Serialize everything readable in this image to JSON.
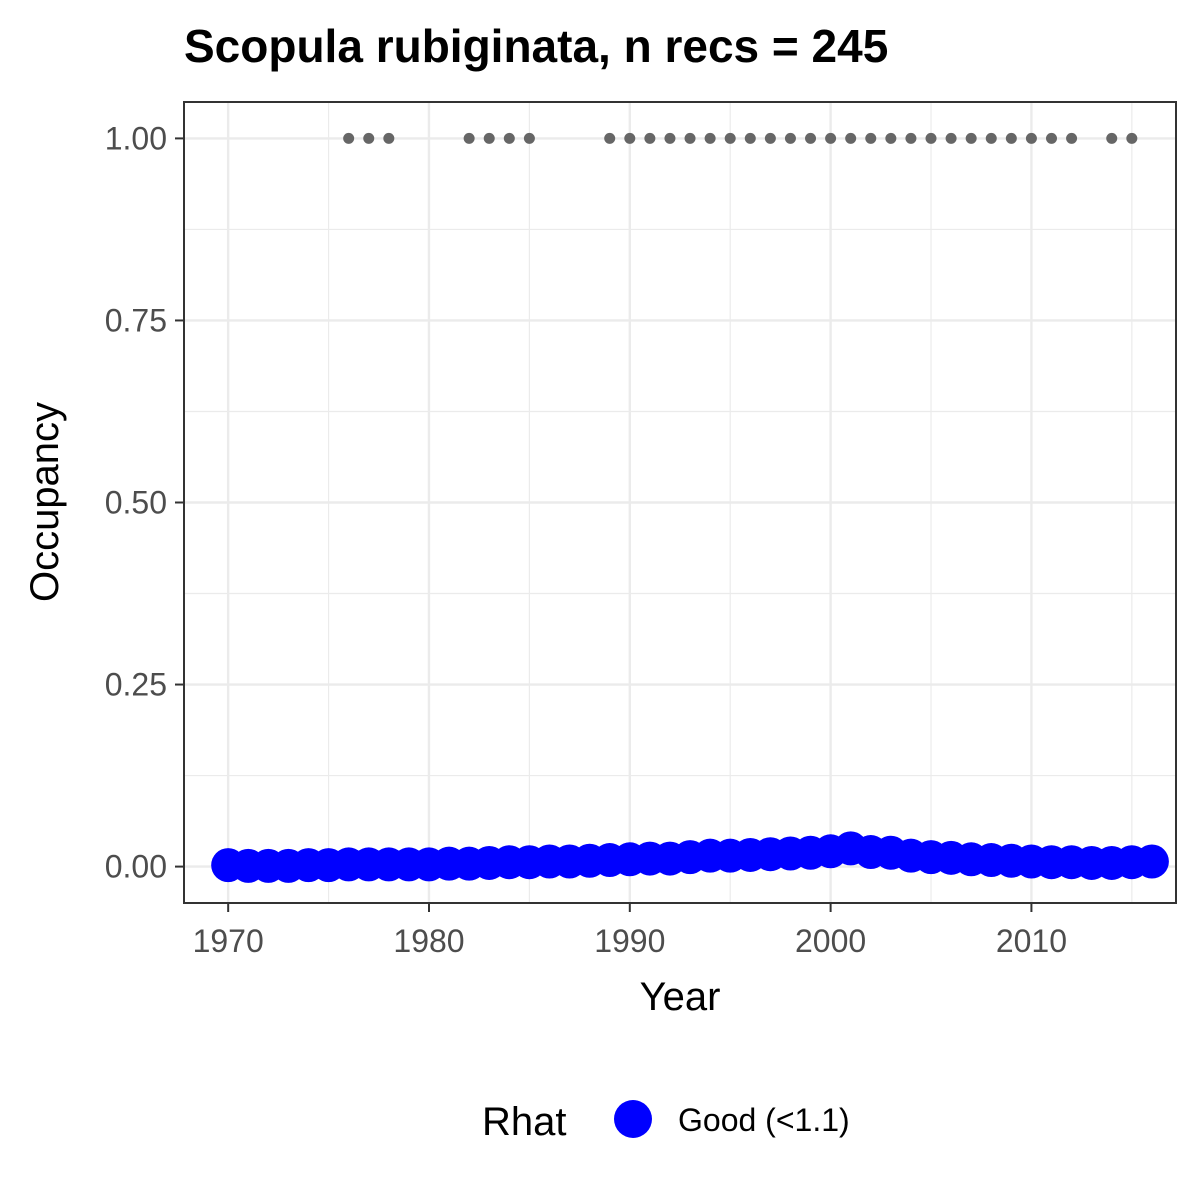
{
  "chart_data": {
    "type": "scatter",
    "title": "Scopula rubiginata, n recs = 245",
    "xlabel": "Year",
    "ylabel": "Occupancy",
    "xlim": [
      1967.8,
      2017.2
    ],
    "ylim": [
      -0.05,
      1.05
    ],
    "x_ticks": [
      1970,
      1980,
      1990,
      2000,
      2010
    ],
    "x_tick_labels": [
      "1970",
      "1980",
      "1990",
      "2000",
      "2010"
    ],
    "y_ticks": [
      0,
      0.25,
      0.5,
      0.75,
      1
    ],
    "y_tick_labels": [
      "0.00",
      "0.25",
      "0.50",
      "0.75",
      "1.00"
    ],
    "grid": true,
    "legend": {
      "title": "Rhat",
      "position": "bottom",
      "entries": [
        {
          "label": "Good (<1.1)",
          "color": "#0000ff"
        }
      ]
    },
    "series": [
      {
        "name": "Good (<1.1)",
        "color": "#0000ff",
        "points": [
          [
            1970,
            0.002
          ],
          [
            1971,
            0.001
          ],
          [
            1972,
            0.001
          ],
          [
            1973,
            0.001
          ],
          [
            1974,
            0.002
          ],
          [
            1975,
            0.002
          ],
          [
            1976,
            0.003
          ],
          [
            1977,
            0.003
          ],
          [
            1978,
            0.003
          ],
          [
            1979,
            0.003
          ],
          [
            1980,
            0.003
          ],
          [
            1981,
            0.004
          ],
          [
            1982,
            0.004
          ],
          [
            1983,
            0.005
          ],
          [
            1984,
            0.006
          ],
          [
            1985,
            0.006
          ],
          [
            1986,
            0.007
          ],
          [
            1987,
            0.007
          ],
          [
            1988,
            0.008
          ],
          [
            1989,
            0.009
          ],
          [
            1990,
            0.01
          ],
          [
            1991,
            0.011
          ],
          [
            1992,
            0.011
          ],
          [
            1993,
            0.013
          ],
          [
            1994,
            0.015
          ],
          [
            1995,
            0.015
          ],
          [
            1996,
            0.016
          ],
          [
            1997,
            0.017
          ],
          [
            1998,
            0.018
          ],
          [
            1999,
            0.019
          ],
          [
            2000,
            0.021
          ],
          [
            2001,
            0.025
          ],
          [
            2002,
            0.02
          ],
          [
            2003,
            0.019
          ],
          [
            2004,
            0.015
          ],
          [
            2005,
            0.013
          ],
          [
            2006,
            0.012
          ],
          [
            2007,
            0.01
          ],
          [
            2008,
            0.009
          ],
          [
            2009,
            0.008
          ],
          [
            2010,
            0.007
          ],
          [
            2011,
            0.006
          ],
          [
            2012,
            0.006
          ],
          [
            2013,
            0.005
          ],
          [
            2014,
            0.005
          ],
          [
            2015,
            0.006
          ],
          [
            2016,
            0.007
          ]
        ]
      },
      {
        "name": "",
        "color": "#666666",
        "points": [
          [
            1976,
            1
          ],
          [
            1977,
            1
          ],
          [
            1978,
            1
          ],
          [
            1982,
            1
          ],
          [
            1983,
            1
          ],
          [
            1984,
            1
          ],
          [
            1985,
            1
          ],
          [
            1989,
            1
          ],
          [
            1990,
            1
          ],
          [
            1991,
            1
          ],
          [
            1992,
            1
          ],
          [
            1993,
            1
          ],
          [
            1994,
            1
          ],
          [
            1995,
            1
          ],
          [
            1996,
            1
          ],
          [
            1997,
            1
          ],
          [
            1998,
            1
          ],
          [
            1999,
            1
          ],
          [
            2000,
            1
          ],
          [
            2001,
            1
          ],
          [
            2002,
            1
          ],
          [
            2003,
            1
          ],
          [
            2004,
            1
          ],
          [
            2005,
            1
          ],
          [
            2006,
            1
          ],
          [
            2007,
            1
          ],
          [
            2008,
            1
          ],
          [
            2009,
            1
          ],
          [
            2010,
            1
          ],
          [
            2011,
            1
          ],
          [
            2012,
            1
          ],
          [
            2014,
            1
          ],
          [
            2015,
            1
          ]
        ]
      }
    ]
  }
}
